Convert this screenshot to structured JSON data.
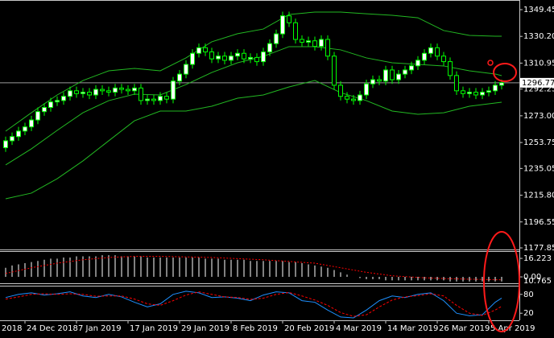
{
  "chart_data": [
    {
      "type": "candlestick",
      "categories": [
        null,
        null,
        null,
        "24 Dec 2018",
        null,
        null,
        null,
        null,
        null,
        null,
        null,
        "7 Jan 2019",
        null,
        null,
        null,
        null,
        null,
        null,
        null,
        "17 Jan 2019",
        null,
        null,
        null,
        null,
        null,
        null,
        null,
        "29 Jan 2019",
        null,
        null,
        null,
        null,
        null,
        null,
        null,
        "8 Feb 2019",
        null,
        null,
        null,
        null,
        null,
        null,
        null,
        "20 Feb 2019",
        null,
        null,
        null,
        null,
        null,
        null,
        null,
        "4 Mar 2019",
        null,
        null,
        null,
        null,
        null,
        null,
        null,
        "14 Mar 2019",
        null,
        null,
        null,
        null,
        null,
        null,
        null,
        "26 Mar 2019",
        null,
        null,
        null,
        null,
        null,
        null,
        null,
        "5 Apr 2019",
        null,
        null
      ],
      "clipped_date_label": "2018",
      "open": [
        1250,
        1255,
        1258,
        1262,
        1265,
        1270,
        1276,
        1279,
        1283,
        1284,
        1287,
        1291,
        1289,
        1290,
        1288,
        1292,
        1291,
        1290,
        1293,
        1292,
        1291,
        1293,
        1284,
        1285,
        1284,
        1287,
        1285,
        1298,
        1303,
        1310,
        1318,
        1322,
        1319,
        1314,
        1316,
        1313,
        1316,
        1318,
        1314,
        1315,
        1312,
        1319,
        1325,
        1332,
        1345,
        1340,
        1328,
        1326,
        1327,
        1323,
        1328,
        1316,
        1295,
        1287,
        1285,
        1284,
        1288,
        1296,
        1299,
        1298,
        1306,
        1299,
        1303,
        1306,
        1309,
        1313,
        1318,
        1322,
        1316,
        1312,
        1302,
        1291,
        1289,
        1290,
        1288,
        1290,
        1291,
        1295
      ],
      "high": [
        1258,
        1261,
        1265,
        1268,
        1273,
        1279,
        1282,
        1286,
        1287,
        1290,
        1294,
        1294,
        1293,
        1293,
        1295,
        1295,
        1294,
        1296,
        1296,
        1295,
        1296,
        1296,
        1288,
        1288,
        1290,
        1290,
        1301,
        1306,
        1313,
        1321,
        1325,
        1325,
        1322,
        1319,
        1319,
        1319,
        1321,
        1321,
        1318,
        1318,
        1322,
        1328,
        1335,
        1348,
        1348,
        1343,
        1331,
        1330,
        1330,
        1331,
        1331,
        1319,
        1298,
        1290,
        1288,
        1291,
        1299,
        1302,
        1302,
        1309,
        1309,
        1306,
        1309,
        1312,
        1316,
        1321,
        1325,
        1325,
        1319,
        1315,
        1305,
        1294,
        1293,
        1293,
        1293,
        1294,
        1298,
        1299
      ],
      "low": [
        1247,
        1252,
        1255,
        1259,
        1262,
        1267,
        1273,
        1276,
        1280,
        1281,
        1284,
        1286,
        1286,
        1285,
        1285,
        1288,
        1287,
        1287,
        1289,
        1288,
        1288,
        1281,
        1281,
        1281,
        1281,
        1282,
        1282,
        1295,
        1300,
        1307,
        1315,
        1316,
        1311,
        1311,
        1310,
        1310,
        1313,
        1311,
        1311,
        1309,
        1309,
        1316,
        1322,
        1329,
        1337,
        1325,
        1323,
        1323,
        1320,
        1320,
        1313,
        1292,
        1284,
        1282,
        1281,
        1281,
        1285,
        1293,
        1295,
        1295,
        1296,
        1296,
        1300,
        1303,
        1306,
        1310,
        1315,
        1313,
        1309,
        1299,
        1288,
        1286,
        1286,
        1285,
        1285,
        1287,
        1288,
        1292
      ],
      "close": [
        1255,
        1258,
        1262,
        1265,
        1270,
        1276,
        1279,
        1283,
        1284,
        1287,
        1291,
        1289,
        1290,
        1288,
        1292,
        1291,
        1290,
        1293,
        1292,
        1291,
        1293,
        1284,
        1285,
        1284,
        1287,
        1285,
        1298,
        1303,
        1310,
        1318,
        1322,
        1319,
        1314,
        1316,
        1313,
        1316,
        1318,
        1314,
        1315,
        1312,
        1319,
        1325,
        1332,
        1345,
        1340,
        1328,
        1326,
        1327,
        1323,
        1328,
        1316,
        1295,
        1287,
        1285,
        1284,
        1288,
        1296,
        1299,
        1298,
        1306,
        1299,
        1303,
        1306,
        1309,
        1313,
        1318,
        1322,
        1316,
        1312,
        1302,
        1291,
        1289,
        1290,
        1288,
        1290,
        1291,
        1295,
        1296.77
      ],
      "up_color": "#ffffff",
      "down_color": "#000000",
      "edge_color": "#00ff00",
      "ylim": [
        1176.7,
        1356.4
      ],
      "yticks": [
        1349.45,
        {
          "value": 1330.2,
          "label": "1330.20"
        },
        1310.95,
        1292.25,
        {
          "value": 1273,
          "label": "1273.00"
        },
        1253.75,
        1235.05,
        {
          "value": 1215.8,
          "label": "1215.80"
        },
        1196.55,
        1177.85
      ],
      "last_price": 1296.77,
      "bands": {
        "color": "#22b822",
        "x": [
          0,
          4,
          8,
          12,
          16,
          20,
          24,
          28,
          32,
          36,
          40,
          44,
          48,
          52,
          56,
          60,
          64,
          68,
          72,
          76,
          77
        ],
        "series": [
          {
            "values": [
              1261.9,
              1275.2,
              1288.0,
              1298.4,
              1305.4,
              1307.1,
              1305.4,
              1314.7,
              1326.3,
              1332.1,
              1335.5,
              1346.0,
              1347.7,
              1347.7,
              1346.5,
              1345.4,
              1343.6,
              1334.4,
              1330.9,
              1330.3,
              1330.3
            ]
          },
          {
            "values": [
              1237.6,
              1249.2,
              1262.5,
              1275.2,
              1283.9,
              1288.6,
              1288.0,
              1295.5,
              1304.2,
              1311.2,
              1315.8,
              1322.8,
              1322.8,
              1320.5,
              1314.7,
              1311.2,
              1310.0,
              1308.9,
              1305.4,
              1303.1,
              1301.9
            ]
          },
          {
            "values": [
              1213.2,
              1217.3,
              1227.7,
              1240.5,
              1255.0,
              1269.4,
              1276.4,
              1276.4,
              1279.9,
              1285.7,
              1288.0,
              1293.8,
              1298.4,
              1289.7,
              1283.9,
              1276.4,
              1274.1,
              1275.2,
              1279.9,
              1282.2,
              1282.8
            ]
          }
        ]
      }
    },
    {
      "type": "macd",
      "values": [
        8,
        10,
        11,
        12,
        13,
        14,
        15,
        16,
        16,
        17,
        17,
        18,
        18,
        18,
        18,
        19,
        19,
        19,
        18,
        18,
        18,
        18,
        17,
        17,
        17,
        17,
        17,
        17,
        17,
        17,
        17,
        16,
        16,
        16,
        15,
        15,
        15,
        15,
        14,
        14,
        14,
        14,
        14,
        14,
        13,
        13,
        12,
        11,
        10,
        9,
        8,
        6,
        4,
        2,
        0,
        -1,
        -2,
        -2,
        -2,
        -3,
        -3,
        -3,
        -3,
        -3,
        -3,
        -3,
        -3,
        -3,
        -3,
        -4,
        -4,
        -4,
        -4,
        -4,
        -4,
        -4,
        -4,
        -4
      ],
      "color": "#ffffff",
      "signal": {
        "color": "#ff0000",
        "x": [
          0,
          4,
          8,
          12,
          16,
          20,
          24,
          28,
          32,
          36,
          40,
          44,
          48,
          52,
          56,
          60,
          64,
          68,
          72,
          76,
          77
        ],
        "values": [
          3,
          8,
          12,
          15,
          17,
          18,
          18,
          17.5,
          17,
          16,
          15,
          13.5,
          12,
          8,
          4,
          1,
          -0.5,
          -1.5,
          -2,
          -2.5,
          -2.5
        ]
      },
      "ylim": [
        -5.6,
        21.9
      ],
      "yticks": [
        16.223,
        {
          "value": 0,
          "label": "0.00"
        }
      ],
      "readout": "10.765"
    },
    {
      "type": "stochastic",
      "x": [
        0,
        2,
        4,
        6,
        8,
        10,
        12,
        14,
        16,
        18,
        20,
        22,
        24,
        26,
        28,
        30,
        32,
        34,
        36,
        38,
        40,
        42,
        44,
        46,
        48,
        50,
        52,
        54,
        56,
        58,
        60,
        62,
        64,
        66,
        68,
        70,
        72,
        74,
        76,
        77
      ],
      "series": [
        {
          "color": "#1e90ff",
          "values": [
            70,
            80,
            85,
            78,
            82,
            88,
            75,
            70,
            80,
            72,
            55,
            40,
            50,
            80,
            90,
            85,
            70,
            72,
            68,
            60,
            78,
            88,
            85,
            60,
            55,
            30,
            8,
            5,
            30,
            60,
            75,
            70,
            80,
            85,
            60,
            20,
            12,
            15,
            55,
            68
          ]
        },
        {
          "color": "#ff0000",
          "values": [
            65,
            72,
            80,
            82,
            80,
            82,
            80,
            74,
            75,
            75,
            65,
            50,
            45,
            60,
            78,
            88,
            80,
            72,
            70,
            64,
            68,
            80,
            86,
            75,
            62,
            45,
            22,
            10,
            15,
            40,
            62,
            72,
            76,
            82,
            75,
            45,
            20,
            13,
            30,
            42
          ]
        }
      ],
      "ylim": [
        0,
        100
      ],
      "yticks": [
        80,
        20
      ]
    }
  ]
}
